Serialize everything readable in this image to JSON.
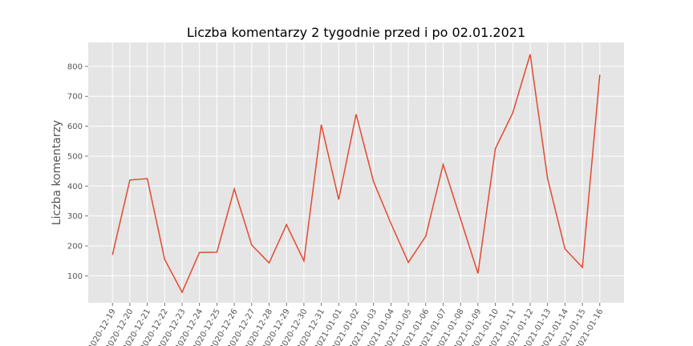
{
  "chart_data": {
    "type": "line",
    "title": "Liczba komentarzy 2 tygodnie przed i po 02.01.2021",
    "xlabel": "",
    "ylabel": "Liczba komentarzy",
    "ylim": [
      10,
      880
    ],
    "yticks": [
      100,
      200,
      300,
      400,
      500,
      600,
      700,
      800
    ],
    "grid": true,
    "legend": "none",
    "x": [
      "2020-12-19",
      "2020-12-20",
      "2020-12-21",
      "2020-12-22",
      "2020-12-23",
      "2020-12-24",
      "2020-12-25",
      "2020-12-26",
      "2020-12-27",
      "2020-12-28",
      "2020-12-29",
      "2020-12-30",
      "2020-12-31",
      "2021-01-01",
      "2021-01-02",
      "2021-01-03",
      "2021-01-04",
      "2021-01-05",
      "2021-01-06",
      "2021-01-07",
      "2021-01-08",
      "2021-01-09",
      "2021-01-10",
      "2021-01-11",
      "2021-01-12",
      "2021-01-13",
      "2021-01-14",
      "2021-01-15",
      "2021-01-16"
    ],
    "series": [
      {
        "values": [
          170,
          420,
          425,
          155,
          45,
          178,
          179,
          390,
          203,
          143,
          271,
          150,
          605,
          355,
          640,
          415,
          275,
          145,
          232,
          472,
          290,
          108,
          525,
          645,
          840,
          425,
          190,
          128,
          772
        ]
      }
    ],
    "colors": {
      "line": "#e24a33",
      "background": "#e5e5e5",
      "grid": "#ffffff"
    }
  }
}
